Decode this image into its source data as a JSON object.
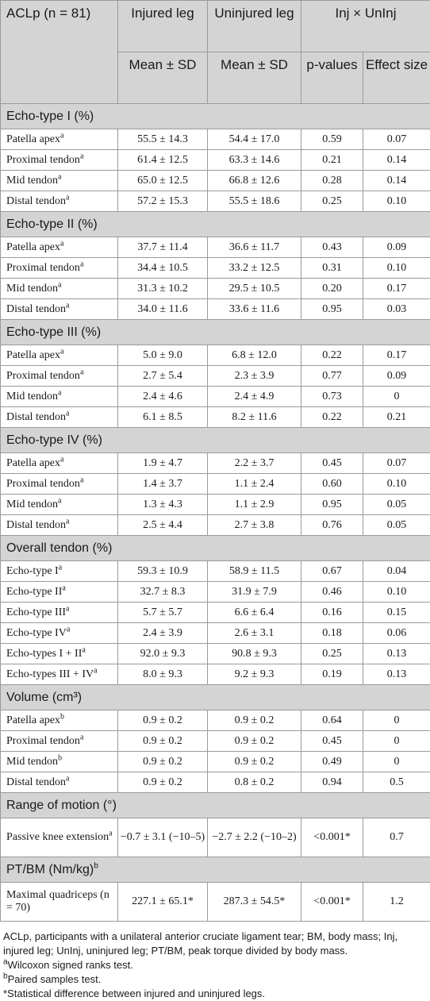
{
  "header": {
    "group_label": "ACLp (n = 81)",
    "col_injured": "Injured leg",
    "col_uninjured": "Uninjured leg",
    "col_compare": "Inj × UnInj",
    "sub_injured": "Mean ± SD",
    "sub_uninjured": "Mean ± SD",
    "sub_p": "p-values",
    "sub_effect": "Effect size"
  },
  "sections": [
    {
      "title": "Echo-type I (%)",
      "rows": [
        {
          "label": "Patella apex",
          "sup": "a",
          "inj": "55.5 ± 14.3",
          "uninj": "54.4 ± 17.0",
          "p": "0.59",
          "es": "0.07"
        },
        {
          "label": "Proximal tendon",
          "sup": "a",
          "inj": "61.4 ± 12.5",
          "uninj": "63.3 ± 14.6",
          "p": "0.21",
          "es": "0.14"
        },
        {
          "label": "Mid tendon",
          "sup": "a",
          "inj": "65.0 ± 12.5",
          "uninj": "66.8 ± 12.6",
          "p": "0.28",
          "es": "0.14"
        },
        {
          "label": "Distal tendon",
          "sup": "a",
          "inj": "57.2 ± 15.3",
          "uninj": "55.5 ± 18.6",
          "p": "0.25",
          "es": "0.10"
        }
      ]
    },
    {
      "title": "Echo-type II (%)",
      "rows": [
        {
          "label": "Patella apex",
          "sup": "a",
          "inj": "37.7 ± 11.4",
          "uninj": "36.6 ± 11.7",
          "p": "0.43",
          "es": "0.09"
        },
        {
          "label": "Proximal tendon",
          "sup": "a",
          "inj": "34.4 ± 10.5",
          "uninj": "33.2 ± 12.5",
          "p": "0.31",
          "es": "0.10"
        },
        {
          "label": "Mid tendon",
          "sup": "a",
          "inj": "31.3 ± 10.2",
          "uninj": "29.5 ± 10.5",
          "p": "0.20",
          "es": "0.17"
        },
        {
          "label": "Distal tendon",
          "sup": "a",
          "inj": "34.0 ± 11.6",
          "uninj": "33.6 ± 11.6",
          "p": "0.95",
          "es": "0.03"
        }
      ]
    },
    {
      "title": "Echo-type III (%)",
      "rows": [
        {
          "label": "Patella apex",
          "sup": "a",
          "inj": "5.0 ± 9.0",
          "uninj": "6.8 ± 12.0",
          "p": "0.22",
          "es": "0.17"
        },
        {
          "label": "Proximal tendon",
          "sup": "a",
          "inj": "2.7 ± 5.4",
          "uninj": "2.3 ± 3.9",
          "p": "0.77",
          "es": "0.09"
        },
        {
          "label": "Mid tendon",
          "sup": "a",
          "inj": "2.4 ± 4.6",
          "uninj": "2.4 ± 4.9",
          "p": "0.73",
          "es": "0"
        },
        {
          "label": "Distal tendon",
          "sup": "a",
          "inj": "6.1 ± 8.5",
          "uninj": "8.2 ± 11.6",
          "p": "0.22",
          "es": "0.21"
        }
      ]
    },
    {
      "title": "Echo-type IV (%)",
      "rows": [
        {
          "label": "Patella apex",
          "sup": "a",
          "inj": "1.9 ± 4.7",
          "uninj": "2.2 ± 3.7",
          "p": "0.45",
          "es": "0.07"
        },
        {
          "label": "Proximal tendon",
          "sup": "a",
          "inj": "1.4 ± 3.7",
          "uninj": "1.1 ± 2.4",
          "p": "0.60",
          "es": "0.10"
        },
        {
          "label": "Mid tendon",
          "sup": "a",
          "inj": "1.3 ± 4.3",
          "uninj": "1.1 ± 2.9",
          "p": "0.95",
          "es": "0.05"
        },
        {
          "label": "Distal tendon",
          "sup": "a",
          "inj": "2.5 ± 4.4",
          "uninj": "2.7 ± 3.8",
          "p": "0.76",
          "es": "0.05"
        }
      ]
    },
    {
      "title": "Overall tendon (%)",
      "rows": [
        {
          "label": "Echo-type I",
          "sup": "a",
          "inj": "59.3 ± 10.9",
          "uninj": "58.9 ± 11.5",
          "p": "0.67",
          "es": "0.04"
        },
        {
          "label": "Echo-type II",
          "sup": "a",
          "inj": "32.7 ± 8.3",
          "uninj": "31.9 ± 7.9",
          "p": "0.46",
          "es": "0.10"
        },
        {
          "label": "Echo-type III",
          "sup": "a",
          "inj": "5.7 ± 5.7",
          "uninj": "6.6 ± 6.4",
          "p": "0.16",
          "es": "0.15"
        },
        {
          "label": "Echo-type IV",
          "sup": "a",
          "inj": "2.4 ± 3.9",
          "uninj": "2.6 ± 3.1",
          "p": "0.18",
          "es": "0.06"
        },
        {
          "label": "Echo-types I + II",
          "sup": "a",
          "inj": "92.0 ± 9.3",
          "uninj": "90.8 ± 9.3",
          "p": "0.25",
          "es": "0.13"
        },
        {
          "label": "Echo-types III + IV",
          "sup": "a",
          "inj": "8.0 ± 9.3",
          "uninj": "9.2 ± 9.3",
          "p": "0.19",
          "es": "0.13"
        }
      ]
    },
    {
      "title": "Volume (cm³)",
      "rows": [
        {
          "label": "Patella apex",
          "sup": "b",
          "inj": "0.9 ± 0.2",
          "uninj": "0.9 ± 0.2",
          "p": "0.64",
          "es": "0"
        },
        {
          "label": "Proximal tendon",
          "sup": "a",
          "inj": "0.9 ± 0.2",
          "uninj": "0.9 ± 0.2",
          "p": "0.45",
          "es": "0"
        },
        {
          "label": "Mid tendon",
          "sup": "b",
          "inj": "0.9 ± 0.2",
          "uninj": "0.9 ± 0.2",
          "p": "0.49",
          "es": "0"
        },
        {
          "label": "Distal tendon",
          "sup": "a",
          "inj": "0.9 ± 0.2",
          "uninj": "0.8 ± 0.2",
          "p": "0.94",
          "es": "0.5"
        }
      ]
    },
    {
      "title": "Range of motion (°)",
      "rows": [
        {
          "label": "Passive knee extension",
          "sup": "a",
          "inj": "−0.7 ± 3.1 (−10–5)",
          "uninj": "−2.7 ± 2.2 (−10–2)",
          "p": "<0.001*",
          "es": "0.7",
          "tall": true
        }
      ]
    },
    {
      "title": "PT/BM (Nm/kg)",
      "title_sup": "b",
      "rows": [
        {
          "label": "Maximal quadriceps (n = 70)",
          "sup": "",
          "inj": "227.1 ± 65.1*",
          "uninj": "287.3 ± 54.5*",
          "p": "<0.001*",
          "es": "1.2",
          "tall": true
        }
      ]
    }
  ],
  "footnotes": {
    "abbrev": "ACLp, participants with a unilateral anterior cruciate ligament tear; BM, body mass; Inj, injured leg; UnInj, uninjured leg; PT/BM, peak torque divided by body mass.",
    "note_a_mark": "a",
    "note_a": "Wilcoxon signed ranks test.",
    "note_b_mark": "b",
    "note_b": "Paired samples test.",
    "note_star": "*Statistical difference between injured and uninjured legs."
  }
}
